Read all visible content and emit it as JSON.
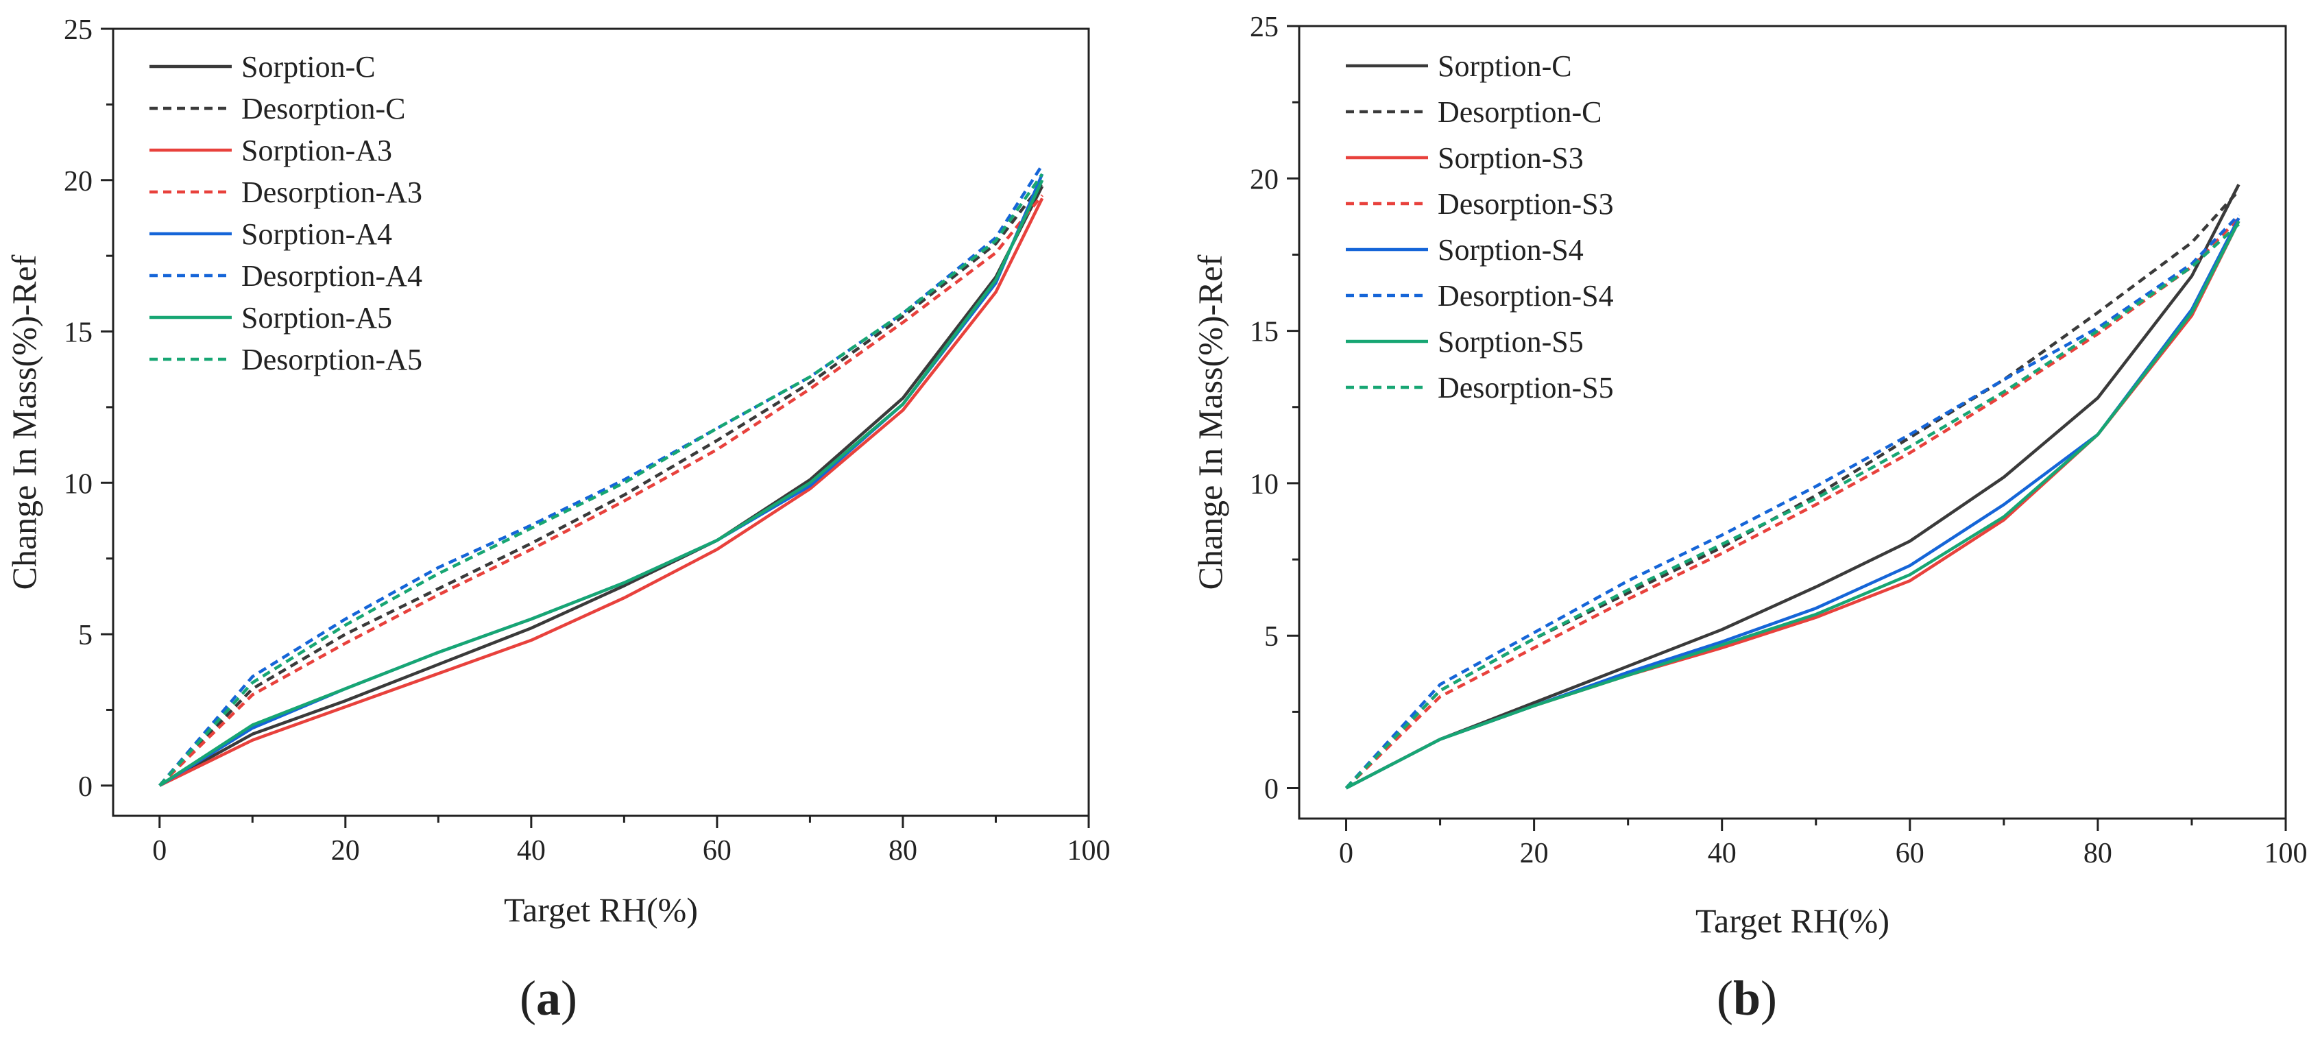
{
  "figure": {
    "panel_labels": [
      {
        "open": "(",
        "letter": "a",
        "close": ")"
      },
      {
        "open": "(",
        "letter": "b",
        "close": ")"
      }
    ]
  },
  "chart_data": [
    {
      "type": "line",
      "panel": "a",
      "title": "",
      "xlabel": "Target RH(%)",
      "ylabel": "Change In Mass(%)-Ref",
      "xlim": [
        -5,
        100
      ],
      "ylim": [
        -1,
        25
      ],
      "xticks": [
        0,
        20,
        40,
        60,
        80,
        100
      ],
      "yticks": [
        0,
        5,
        10,
        15,
        20,
        25
      ],
      "grid": false,
      "legend_position": "top-left",
      "x": [
        0,
        10,
        20,
        30,
        40,
        50,
        60,
        70,
        80,
        90,
        95
      ],
      "series": [
        {
          "name": "Sorption-C",
          "color": "#3a3a3a",
          "dash": "solid",
          "values": [
            0,
            1.7,
            2.8,
            4.0,
            5.2,
            6.6,
            8.1,
            10.1,
            12.8,
            16.8,
            19.8
          ]
        },
        {
          "name": "Desorption-C",
          "color": "#3a3a3a",
          "dash": "dashed",
          "values": [
            0,
            3.2,
            5.0,
            6.5,
            8.0,
            9.6,
            11.4,
            13.3,
            15.5,
            17.9,
            19.9
          ]
        },
        {
          "name": "Sorption-A3",
          "color": "#e8413c",
          "dash": "solid",
          "values": [
            0,
            1.5,
            2.6,
            3.7,
            4.8,
            6.2,
            7.8,
            9.8,
            12.4,
            16.3,
            19.4
          ]
        },
        {
          "name": "Desorption-A3",
          "color": "#e8413c",
          "dash": "dashed",
          "values": [
            0,
            3.0,
            4.7,
            6.3,
            7.8,
            9.4,
            11.1,
            13.1,
            15.3,
            17.6,
            19.5
          ]
        },
        {
          "name": "Sorption-A4",
          "color": "#1565d8",
          "dash": "solid",
          "values": [
            0,
            1.9,
            3.2,
            4.4,
            5.5,
            6.7,
            8.1,
            9.9,
            12.6,
            16.6,
            20.2
          ]
        },
        {
          "name": "Desorption-A4",
          "color": "#1565d8",
          "dash": "dashed",
          "values": [
            0,
            3.6,
            5.5,
            7.2,
            8.6,
            10.1,
            11.8,
            13.5,
            15.6,
            18.1,
            20.5
          ]
        },
        {
          "name": "Sorption-A5",
          "color": "#17a673",
          "dash": "solid",
          "values": [
            0,
            2.0,
            3.2,
            4.4,
            5.5,
            6.7,
            8.1,
            10.0,
            12.6,
            16.7,
            20.0
          ]
        },
        {
          "name": "Desorption-A5",
          "color": "#17a673",
          "dash": "dashed",
          "values": [
            0,
            3.4,
            5.3,
            7.0,
            8.5,
            10.0,
            11.8,
            13.5,
            15.6,
            18.0,
            20.2
          ]
        }
      ]
    },
    {
      "type": "line",
      "panel": "b",
      "title": "",
      "xlabel": "Target RH(%)",
      "ylabel": "Change In Mass(%)-Ref",
      "xlim": [
        -5,
        100
      ],
      "ylim": [
        -1,
        25
      ],
      "xticks": [
        0,
        20,
        40,
        60,
        80,
        100
      ],
      "yticks": [
        0,
        5,
        10,
        15,
        20,
        25
      ],
      "grid": false,
      "legend_position": "top-left",
      "x": [
        0,
        10,
        20,
        30,
        40,
        50,
        60,
        70,
        80,
        90,
        95
      ],
      "series": [
        {
          "name": "Sorption-C",
          "color": "#3a3a3a",
          "dash": "solid",
          "values": [
            0,
            1.6,
            2.8,
            4.0,
            5.2,
            6.6,
            8.1,
            10.2,
            12.8,
            16.8,
            19.8
          ]
        },
        {
          "name": "Desorption-C",
          "color": "#3a3a3a",
          "dash": "dashed",
          "values": [
            0,
            3.2,
            4.9,
            6.4,
            7.9,
            9.6,
            11.5,
            13.4,
            15.6,
            17.9,
            19.6
          ]
        },
        {
          "name": "Sorption-S3",
          "color": "#e8413c",
          "dash": "solid",
          "values": [
            0,
            1.6,
            2.7,
            3.7,
            4.6,
            5.6,
            6.8,
            8.8,
            11.6,
            15.5,
            18.6
          ]
        },
        {
          "name": "Desorption-S3",
          "color": "#e8413c",
          "dash": "dashed",
          "values": [
            0,
            3.0,
            4.6,
            6.2,
            7.7,
            9.3,
            11.0,
            12.9,
            14.9,
            17.1,
            18.7
          ]
        },
        {
          "name": "Sorption-S4",
          "color": "#1565d8",
          "dash": "solid",
          "values": [
            0,
            1.6,
            2.7,
            3.8,
            4.8,
            5.9,
            7.3,
            9.3,
            11.6,
            15.7,
            18.7
          ]
        },
        {
          "name": "Desorption-S4",
          "color": "#1565d8",
          "dash": "dashed",
          "values": [
            0,
            3.4,
            5.1,
            6.8,
            8.3,
            9.9,
            11.6,
            13.4,
            15.1,
            17.2,
            18.8
          ]
        },
        {
          "name": "Sorption-S5",
          "color": "#17a673",
          "dash": "solid",
          "values": [
            0,
            1.6,
            2.7,
            3.7,
            4.7,
            5.7,
            7.0,
            8.9,
            11.6,
            15.6,
            18.6
          ]
        },
        {
          "name": "Desorption-S5",
          "color": "#17a673",
          "dash": "dashed",
          "values": [
            0,
            3.2,
            4.9,
            6.5,
            8.0,
            9.5,
            11.2,
            13.0,
            15.0,
            17.1,
            18.5
          ]
        }
      ]
    }
  ]
}
